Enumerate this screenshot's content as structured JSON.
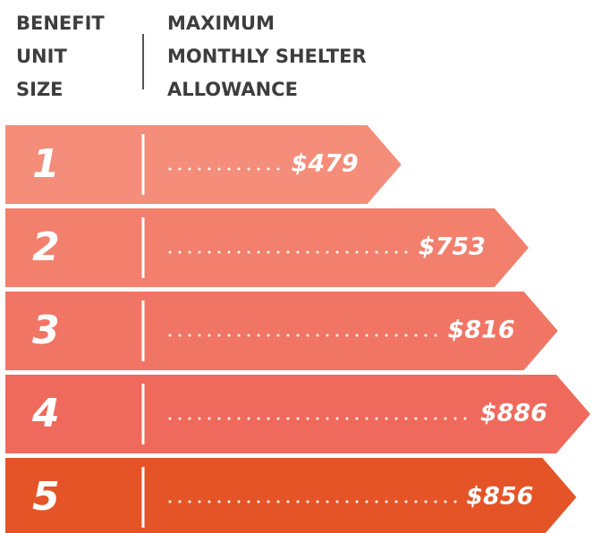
{
  "chart_data": {
    "type": "bar",
    "orientation": "horizontal",
    "category_header": [
      "BENEFIT",
      "UNIT",
      "SIZE"
    ],
    "value_header": [
      "MAXIMUM",
      "MONTHLY SHELTER",
      "ALLOWANCE"
    ],
    "categories": [
      "1",
      "2",
      "3",
      "4",
      "5"
    ],
    "values": [
      479,
      753,
      816,
      886,
      856
    ],
    "value_labels": [
      "$479",
      "$753",
      "$816",
      "$886",
      "$856"
    ],
    "colors": [
      "#f48d79",
      "#f37f6d",
      "#f17565",
      "#ef6a5c",
      "#e55427"
    ]
  }
}
